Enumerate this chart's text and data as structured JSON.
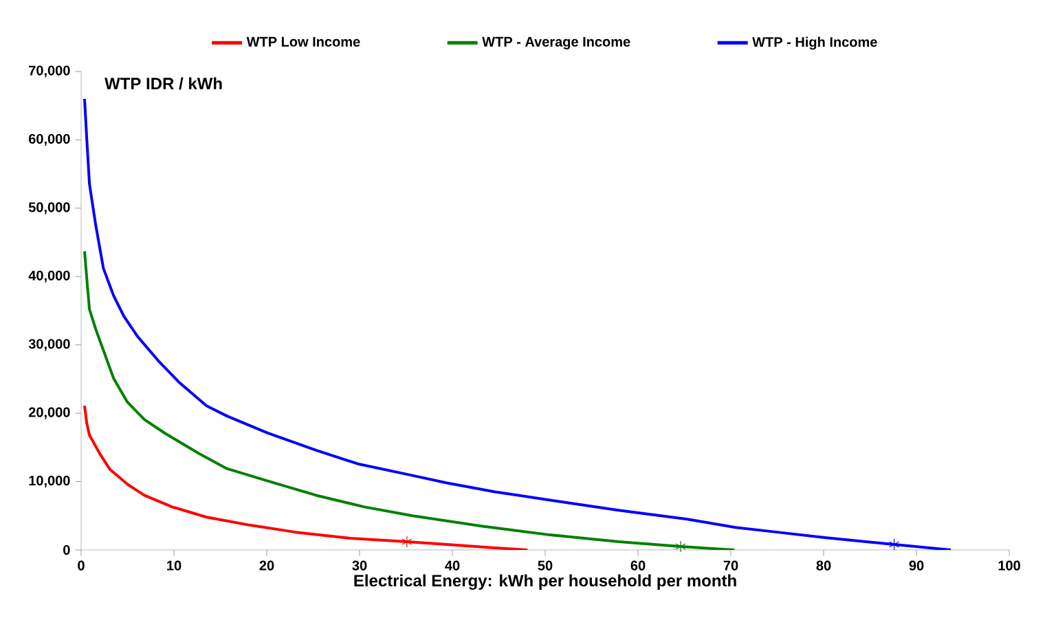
{
  "chart_data": {
    "type": "line",
    "xlabel": "Electrical Energy:  kWh per household per month",
    "ylabel": "WTP  IDR / kWh",
    "xlim": [
      0,
      100
    ],
    "xticks": [
      0,
      10,
      20,
      30,
      40,
      50,
      60,
      70,
      80,
      90,
      100
    ],
    "ylim": [
      0,
      70000
    ],
    "yticks": [
      {
        "value": 0,
        "label": "0"
      },
      {
        "value": 10000,
        "label": "10,000"
      },
      {
        "value": 20000,
        "label": "20,000"
      },
      {
        "value": 30000,
        "label": "30,000"
      },
      {
        "value": 40000,
        "label": "40,000"
      },
      {
        "value": 50000,
        "label": "50,000"
      },
      {
        "value": 60000,
        "label": "60,000"
      },
      {
        "value": 70000,
        "label": "70,000"
      }
    ],
    "grid": false,
    "legend": "top",
    "marker": "none",
    "line_style": "solid",
    "series": [
      {
        "name": "WTP Low Income",
        "color": "#ff0000",
        "x": [
          0.37,
          0.6,
          0.9,
          2,
          3.1,
          5,
          6.8,
          9.8,
          13.5,
          17.9,
          23.1,
          29,
          35.1,
          39.4,
          44.6,
          48.1
        ],
        "values": [
          21100,
          18600,
          16800,
          14100,
          11800,
          9600,
          8000,
          6300,
          4800,
          3700,
          2600,
          1700,
          1200,
          800,
          300,
          0
        ]
      },
      {
        "name": "WTP - Average Income",
        "color": "#008000",
        "x": [
          0.37,
          0.7,
          0.9,
          1.6,
          2.4,
          3.5,
          5,
          6.8,
          9,
          12.7,
          15.7,
          20.1,
          25.3,
          30.5,
          35.7,
          43.1,
          50.5,
          57.9,
          64.6,
          70.4
        ],
        "values": [
          43700,
          38200,
          35200,
          32200,
          29200,
          25100,
          21600,
          19100,
          17100,
          14100,
          11900,
          10100,
          8000,
          6300,
          5000,
          3500,
          2200,
          1200,
          500,
          0
        ]
      },
      {
        "name": "WTP -  High Income",
        "color": "#0000ff",
        "x": [
          0.37,
          0.6,
          0.9,
          1.6,
          2.4,
          3.5,
          4.6,
          6.1,
          8.3,
          10.5,
          13.5,
          15.7,
          20.1,
          25.3,
          29.8,
          35,
          39.4,
          44.6,
          50.5,
          57.9,
          65.3,
          70.5,
          75,
          80.1,
          87.6,
          93.7
        ],
        "values": [
          66000,
          60300,
          53500,
          47300,
          41200,
          37200,
          34200,
          31200,
          27700,
          24600,
          21100,
          19600,
          17100,
          14600,
          12600,
          11100,
          9800,
          8500,
          7300,
          5800,
          4500,
          3300,
          2600,
          1800,
          800,
          0
        ]
      },
      {
        "type": "scatter",
        "marker": "cross",
        "color": "#ff0000",
        "x": [
          35.1
        ],
        "values": [
          1200
        ]
      },
      {
        "type": "scatter",
        "marker": "cross",
        "color": "#008000",
        "x": [
          64.6
        ],
        "values": [
          500
        ]
      },
      {
        "type": "scatter",
        "marker": "cross",
        "color": "#0000ff",
        "x": [
          87.6
        ],
        "values": [
          800
        ]
      }
    ]
  }
}
